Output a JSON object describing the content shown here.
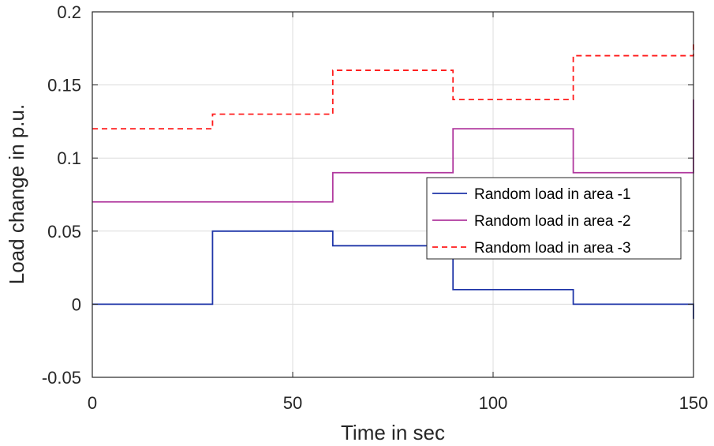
{
  "chart_data": {
    "type": "line",
    "title": "",
    "xlabel": "Time in sec",
    "ylabel": "Load change in p.u.",
    "xlim": [
      0,
      150
    ],
    "ylim": [
      -0.05,
      0.2
    ],
    "grid": true,
    "legend_position": "right",
    "x_ticks": [
      0,
      50,
      100,
      150
    ],
    "x_tick_labels": [
      "0",
      "50",
      "100",
      "150"
    ],
    "y_ticks": [
      -0.05,
      0,
      0.05,
      0.1,
      0.15,
      0.2
    ],
    "y_tick_labels": [
      "-0.05",
      "0",
      "0.05",
      "0.1",
      "0.15",
      "0.2"
    ],
    "series": [
      {
        "name": "Random load in area -1",
        "color": "#1f35a8",
        "dash": "solid",
        "x": [
          0,
          30,
          60,
          90,
          120,
          150
        ],
        "values": [
          0,
          0.05,
          0.04,
          0.01,
          0,
          -0.01
        ]
      },
      {
        "name": "Random load in area -2",
        "color": "#b0389e",
        "dash": "solid",
        "x": [
          0,
          30,
          60,
          90,
          120,
          150
        ],
        "values": [
          0.07,
          0.07,
          0.09,
          0.12,
          0.09,
          0.14
        ]
      },
      {
        "name": "Random load in area -3",
        "color": "#ff1a1a",
        "dash": "dashed",
        "x": [
          0,
          30,
          60,
          90,
          120,
          150
        ],
        "values": [
          0.12,
          0.13,
          0.16,
          0.14,
          0.17,
          0.18
        ]
      }
    ]
  }
}
